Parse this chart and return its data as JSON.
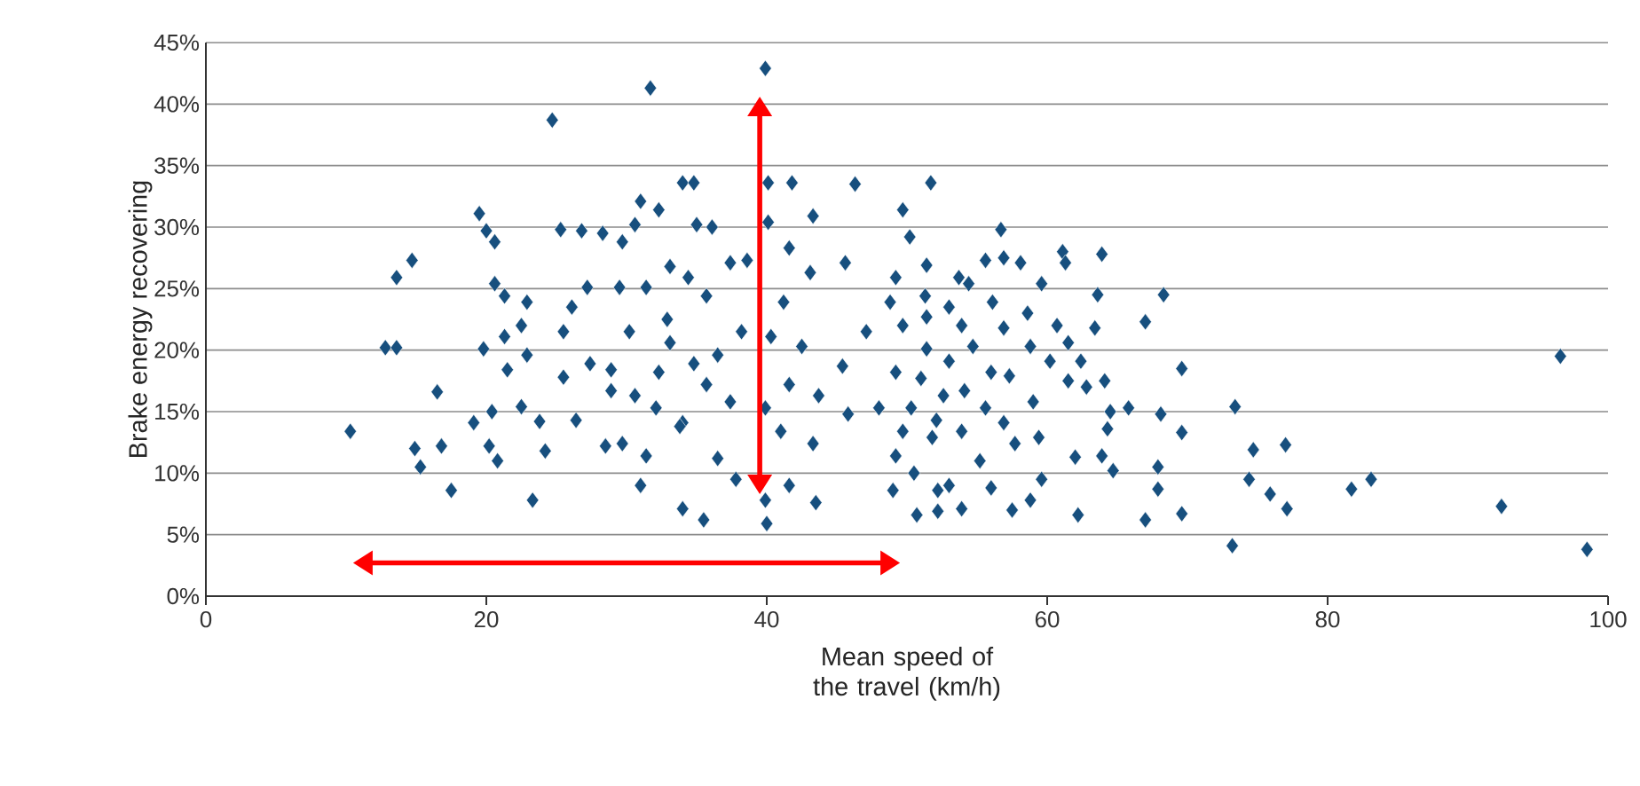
{
  "chart_data": {
    "type": "scatter",
    "xlabel": "Mean speed of the travel (km/h)",
    "ylabel": "Brake energy recovering",
    "xlim": [
      0,
      100
    ],
    "xticks": [
      0,
      20,
      40,
      60,
      80,
      100
    ],
    "ylim": [
      0,
      45
    ],
    "yticks": [
      {
        "value": 0,
        "label": "0%"
      },
      {
        "value": 5,
        "label": "5%"
      },
      {
        "value": 10,
        "label": "10%"
      },
      {
        "value": 15,
        "label": "15%"
      },
      {
        "value": 20,
        "label": "20%"
      },
      {
        "value": 25,
        "label": "25%"
      },
      {
        "value": 30,
        "label": "30%"
      },
      {
        "value": 35,
        "label": "35%"
      },
      {
        "value": 40,
        "label": "40%"
      },
      {
        "value": 45,
        "label": "45%"
      }
    ],
    "grid": "y",
    "marker": "diamond",
    "series": [
      {
        "color": "#174f7e",
        "x": [
          39.9,
          31.7,
          24.7,
          34.0,
          34.8,
          40.1,
          41.8,
          46.3,
          19.5,
          31.0,
          32.3,
          20.0,
          20.6,
          25.3,
          26.8,
          28.3,
          29.7,
          30.6,
          35.0,
          36.1,
          40.1,
          43.3,
          41.6,
          45.6,
          43.1,
          37.4,
          38.6,
          14.7,
          13.6,
          20.6,
          22.9,
          21.3,
          27.2,
          29.5,
          31.4,
          33.1,
          34.4,
          26.1,
          35.7,
          41.2,
          22.5,
          25.5,
          30.2,
          32.9,
          12.8,
          13.6,
          19.8,
          21.3,
          22.9,
          21.5,
          25.5,
          27.4,
          28.9,
          32.3,
          33.1,
          34.8,
          36.5,
          38.2,
          40.3,
          42.5,
          16.5,
          20.4,
          19.1,
          22.5,
          23.8,
          26.4,
          28.9,
          30.6,
          32.1,
          34.0,
          35.7,
          37.4,
          39.9,
          41.6,
          43.7,
          45.4,
          47.1,
          48.8,
          10.3,
          14.9,
          15.3,
          16.8,
          20.2,
          20.8,
          24.2,
          28.5,
          29.7,
          31.4,
          33.8,
          36.5,
          37.8,
          17.5,
          23.3,
          31.0,
          34.0,
          35.5,
          39.9,
          40.0,
          41.6,
          43.5,
          41.0,
          43.3,
          45.8,
          48.0,
          49.2,
          49.0,
          49.7,
          51.7,
          50.2,
          56.7,
          51.4,
          61.1,
          61.3,
          63.9,
          55.6,
          56.9,
          58.1,
          53.7,
          54.4,
          49.2,
          59.6,
          63.6,
          68.3,
          67.0,
          51.3,
          53.0,
          56.1,
          58.6,
          60.7,
          63.4,
          49.7,
          51.4,
          56.9,
          53.9,
          51.4,
          53.0,
          54.7,
          58.8,
          60.2,
          61.5,
          62.4,
          96.6,
          69.6,
          49.2,
          51.0,
          52.6,
          54.1,
          56.0,
          57.3,
          61.5,
          62.8,
          64.1,
          73.4,
          64.5,
          65.8,
          68.1,
          69.6,
          64.3,
          50.3,
          52.1,
          55.6,
          56.9,
          59.0,
          59.4,
          57.7,
          49.7,
          51.8,
          53.9,
          55.2,
          62.0,
          63.9,
          64.7,
          74.7,
          77.0,
          67.9,
          67.9,
          59.6,
          56.0,
          53.0,
          50.5,
          52.2,
          74.4,
          75.9,
          77.1,
          81.7,
          83.1,
          92.4,
          50.7,
          52.2,
          53.9,
          57.5,
          58.8,
          62.2,
          67.0,
          69.6,
          73.2,
          98.5
        ],
        "values": [
          42.9,
          41.3,
          38.7,
          33.6,
          33.6,
          33.6,
          33.6,
          33.5,
          31.1,
          32.1,
          31.4,
          29.7,
          28.8,
          29.8,
          29.7,
          29.5,
          28.8,
          30.2,
          30.2,
          30.0,
          30.4,
          30.9,
          28.3,
          27.1,
          26.3,
          27.1,
          27.3,
          27.3,
          25.9,
          25.4,
          23.9,
          24.4,
          25.1,
          25.1,
          25.1,
          26.8,
          25.9,
          23.5,
          24.4,
          23.9,
          22.0,
          21.5,
          21.5,
          22.5,
          20.2,
          20.2,
          20.1,
          21.1,
          19.6,
          18.4,
          17.8,
          18.9,
          18.4,
          18.2,
          20.6,
          18.9,
          19.6,
          21.5,
          21.1,
          20.3,
          16.6,
          15.0,
          14.1,
          15.4,
          14.2,
          14.3,
          16.7,
          16.3,
          15.3,
          14.1,
          17.2,
          15.8,
          15.3,
          17.2,
          16.3,
          18.7,
          21.5,
          23.9,
          13.4,
          12.0,
          10.5,
          12.2,
          12.2,
          11.0,
          11.8,
          12.2,
          12.4,
          11.4,
          13.8,
          11.2,
          9.5,
          8.6,
          7.8,
          9.0,
          7.1,
          6.2,
          7.8,
          5.9,
          9.0,
          7.6,
          13.4,
          12.4,
          14.8,
          15.3,
          11.4,
          8.6,
          31.4,
          33.6,
          29.2,
          29.8,
          26.9,
          28.0,
          27.1,
          27.8,
          27.3,
          27.5,
          27.1,
          25.9,
          25.4,
          25.9,
          25.4,
          24.5,
          24.5,
          22.3,
          24.4,
          23.5,
          23.9,
          23.0,
          22.0,
          21.8,
          22.0,
          22.7,
          21.8,
          22.0,
          20.1,
          19.1,
          20.3,
          20.3,
          19.1,
          20.6,
          19.1,
          19.5,
          18.5,
          18.2,
          17.7,
          16.3,
          16.7,
          18.2,
          17.9,
          17.5,
          17.0,
          17.5,
          15.4,
          15.0,
          15.3,
          14.8,
          13.3,
          13.6,
          15.3,
          14.3,
          15.3,
          14.1,
          15.8,
          12.9,
          12.4,
          13.4,
          12.9,
          13.4,
          11.0,
          11.3,
          11.4,
          10.2,
          11.9,
          12.3,
          10.5,
          8.7,
          9.5,
          8.8,
          9.0,
          10.0,
          8.6,
          9.5,
          8.3,
          7.1,
          8.7,
          9.5,
          7.3,
          6.6,
          6.9,
          7.1,
          7.0,
          7.8,
          6.6,
          6.2,
          6.7,
          4.1,
          3.8
        ]
      }
    ]
  }
}
